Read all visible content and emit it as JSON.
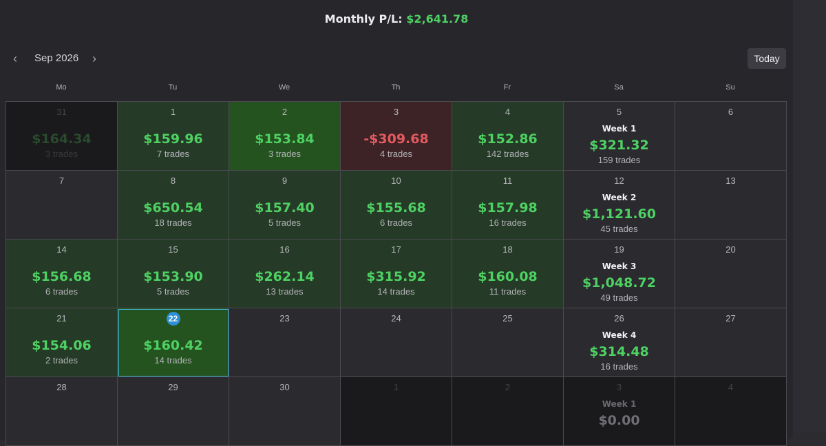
{
  "header": {
    "title_label": "Monthly P/L:",
    "title_value": "$2,641.78"
  },
  "nav": {
    "month_label": "Sep 2026",
    "today_label": "Today"
  },
  "weekdays": [
    "Mo",
    "Tu",
    "We",
    "Th",
    "Fr",
    "Sa",
    "Su"
  ],
  "colors": {
    "positive": "#4ed163",
    "negative": "#e35a5f",
    "today_ring": "#3fb6d8",
    "today_badge": "#2f8fd3"
  },
  "weeks": [
    [
      {
        "day": "31",
        "pl": "$164.34",
        "trades": "3 trades",
        "state": "out"
      },
      {
        "day": "1",
        "pl": "$159.96",
        "trades": "7 trades",
        "state": "pos"
      },
      {
        "day": "2",
        "pl": "$153.84",
        "trades": "3 trades",
        "state": "strong"
      },
      {
        "day": "3",
        "pl": "-$309.68",
        "trades": "4 trades",
        "state": "neg"
      },
      {
        "day": "4",
        "pl": "$152.86",
        "trades": "142 trades",
        "state": "pos"
      },
      {
        "day": "5",
        "week": "Week 1",
        "pl": "$321.32",
        "trades": "159 trades",
        "state": "summary"
      },
      {
        "day": "6",
        "state": "empty"
      }
    ],
    [
      {
        "day": "7",
        "state": "empty"
      },
      {
        "day": "8",
        "pl": "$650.54",
        "trades": "18 trades",
        "state": "pos"
      },
      {
        "day": "9",
        "pl": "$157.40",
        "trades": "5 trades",
        "state": "pos"
      },
      {
        "day": "10",
        "pl": "$155.68",
        "trades": "6 trades",
        "state": "pos"
      },
      {
        "day": "11",
        "pl": "$157.98",
        "trades": "16 trades",
        "state": "pos"
      },
      {
        "day": "12",
        "week": "Week 2",
        "pl": "$1,121.60",
        "trades": "45 trades",
        "state": "summary"
      },
      {
        "day": "13",
        "state": "empty"
      }
    ],
    [
      {
        "day": "14",
        "pl": "$156.68",
        "trades": "6 trades",
        "state": "pos"
      },
      {
        "day": "15",
        "pl": "$153.90",
        "trades": "5 trades",
        "state": "pos"
      },
      {
        "day": "16",
        "pl": "$262.14",
        "trades": "13 trades",
        "state": "pos"
      },
      {
        "day": "17",
        "pl": "$315.92",
        "trades": "14 trades",
        "state": "pos"
      },
      {
        "day": "18",
        "pl": "$160.08",
        "trades": "11 trades",
        "state": "pos"
      },
      {
        "day": "19",
        "week": "Week 3",
        "pl": "$1,048.72",
        "trades": "49 trades",
        "state": "summary"
      },
      {
        "day": "20",
        "state": "empty"
      }
    ],
    [
      {
        "day": "21",
        "pl": "$154.06",
        "trades": "2 trades",
        "state": "pos"
      },
      {
        "day": "22",
        "pl": "$160.42",
        "trades": "14 trades",
        "state": "today"
      },
      {
        "day": "23",
        "state": "empty"
      },
      {
        "day": "24",
        "state": "empty"
      },
      {
        "day": "25",
        "state": "empty"
      },
      {
        "day": "26",
        "week": "Week 4",
        "pl": "$314.48",
        "trades": "16 trades",
        "state": "summary"
      },
      {
        "day": "27",
        "state": "empty"
      }
    ],
    [
      {
        "day": "28",
        "state": "empty"
      },
      {
        "day": "29",
        "state": "empty"
      },
      {
        "day": "30",
        "state": "empty"
      },
      {
        "day": "1",
        "state": "out-empty"
      },
      {
        "day": "2",
        "state": "out-empty"
      },
      {
        "day": "3",
        "week": "Week 1",
        "pl": "$0.00",
        "state": "out-summary"
      },
      {
        "day": "4",
        "state": "out-empty"
      }
    ]
  ]
}
